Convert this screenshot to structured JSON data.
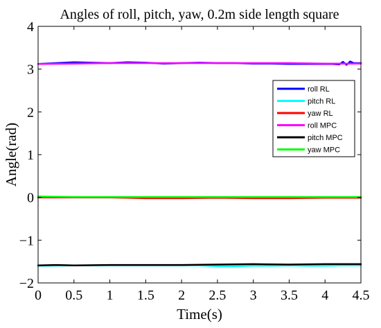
{
  "chart_data": {
    "type": "line",
    "title": "Angles of roll, pitch, yaw, 0.2m side length square",
    "xlabel": "Time(s)",
    "ylabel": "Angle(rad)",
    "xlim": [
      0,
      4.5
    ],
    "ylim": [
      -2,
      4
    ],
    "xticks": [
      0,
      0.5,
      1,
      1.5,
      2,
      2.5,
      3,
      3.5,
      4,
      4.5
    ],
    "xtick_labels": [
      "0",
      "0.5",
      "1",
      "1.5",
      "2",
      "2.5",
      "3",
      "3.5",
      "4",
      "4.5"
    ],
    "yticks": [
      -2,
      -1,
      0,
      1,
      2,
      3,
      4
    ],
    "ytick_labels": [
      "−2",
      "−1",
      "0",
      "1",
      "2",
      "3",
      "4"
    ],
    "grid": false,
    "legend_position": "right",
    "series": [
      {
        "name": "roll RL",
        "color": "#0000ff",
        "x": [
          0,
          0.25,
          0.5,
          0.75,
          1,
          1.25,
          1.5,
          1.75,
          2,
          2.25,
          2.5,
          2.75,
          3,
          3.25,
          3.5,
          3.75,
          4,
          4.1,
          4.2,
          4.25,
          4.3,
          4.35,
          4.4,
          4.5
        ],
        "y": [
          3.12,
          3.14,
          3.16,
          3.15,
          3.14,
          3.16,
          3.15,
          3.13,
          3.14,
          3.15,
          3.14,
          3.14,
          3.13,
          3.13,
          3.12,
          3.12,
          3.12,
          3.12,
          3.11,
          3.17,
          3.1,
          3.18,
          3.14,
          3.14
        ]
      },
      {
        "name": "pitch RL",
        "color": "#00ffff",
        "x": [
          0,
          0.5,
          1,
          1.5,
          2,
          2.25,
          2.5,
          2.75,
          3,
          3.25,
          3.5,
          3.75,
          4,
          4.25,
          4.5
        ],
        "y": [
          -1.6,
          -1.59,
          -1.59,
          -1.59,
          -1.59,
          -1.59,
          -1.61,
          -1.61,
          -1.6,
          -1.6,
          -1.59,
          -1.6,
          -1.6,
          -1.59,
          -1.59
        ]
      },
      {
        "name": "yaw RL",
        "color": "#ff0000",
        "x": [
          0,
          0.5,
          1,
          1.25,
          1.5,
          2,
          2.5,
          3,
          3.5,
          4,
          4.5
        ],
        "y": [
          0.0,
          0.0,
          0.0,
          -0.01,
          -0.02,
          -0.02,
          -0.01,
          -0.02,
          -0.02,
          -0.01,
          -0.01
        ]
      },
      {
        "name": "roll MPC",
        "color": "#ff00ff",
        "x": [
          0,
          0.5,
          1,
          1.5,
          2,
          2.5,
          3,
          3.5,
          4,
          4.5
        ],
        "y": [
          3.12,
          3.13,
          3.14,
          3.14,
          3.14,
          3.14,
          3.14,
          3.14,
          3.13,
          3.13
        ]
      },
      {
        "name": "pitch MPC",
        "color": "#000000",
        "x": [
          0,
          0.25,
          0.5,
          1,
          1.5,
          2,
          2.5,
          3,
          3.5,
          4,
          4.5
        ],
        "y": [
          -1.59,
          -1.58,
          -1.59,
          -1.58,
          -1.58,
          -1.58,
          -1.57,
          -1.56,
          -1.57,
          -1.56,
          -1.56
        ]
      },
      {
        "name": "yaw MPC",
        "color": "#00ff00",
        "x": [
          0,
          0.5,
          1,
          1.5,
          2,
          2.5,
          3,
          3.5,
          4,
          4.5
        ],
        "y": [
          0.02,
          0.01,
          0.01,
          0.01,
          0.01,
          0.01,
          0.01,
          0.01,
          0.01,
          0.01
        ]
      }
    ]
  }
}
